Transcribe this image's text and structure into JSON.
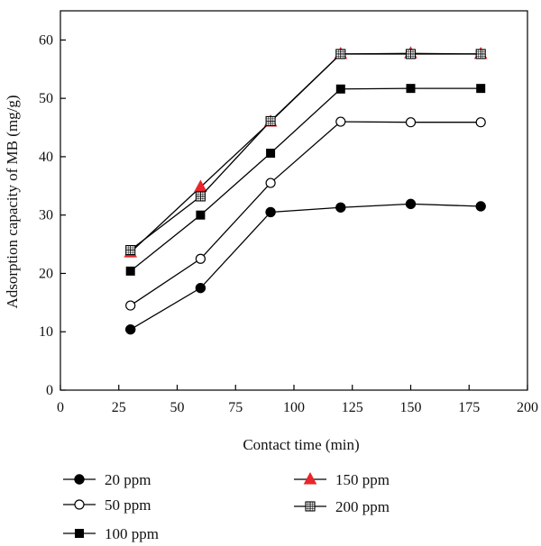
{
  "chart_data": {
    "type": "line",
    "title": "",
    "xlabel": "Contact time (min)",
    "ylabel": "Adsorption capacity of MB (mg/g)",
    "xlim": [
      0,
      200
    ],
    "ylim": [
      0,
      65
    ],
    "x_ticks": [
      0,
      25,
      50,
      75,
      100,
      125,
      150,
      175,
      200
    ],
    "y_ticks": [
      0,
      10,
      20,
      30,
      40,
      50,
      60
    ],
    "x_tick_labels": [
      "0",
      "25",
      "50",
      "75",
      "100",
      "125",
      "150",
      "175",
      "200"
    ],
    "y_tick_labels": [
      "0",
      "10",
      "20",
      "30",
      "40",
      "50",
      "60"
    ],
    "grid": false,
    "legend_position": "bottom",
    "x": [
      30,
      60,
      90,
      120,
      150,
      180
    ],
    "series": [
      {
        "name": "20 ppm",
        "marker": "filled-circle",
        "color": "#000000",
        "values": [
          10.4,
          17.5,
          30.5,
          31.3,
          31.9,
          31.5
        ]
      },
      {
        "name": "50 ppm",
        "marker": "open-circle",
        "color": "#000000",
        "values": [
          14.5,
          22.5,
          35.5,
          46.0,
          45.9,
          45.9
        ]
      },
      {
        "name": "100 ppm",
        "marker": "filled-square",
        "color": "#000000",
        "values": [
          20.4,
          30.0,
          40.6,
          51.6,
          51.7,
          51.7
        ]
      },
      {
        "name": "150 ppm",
        "marker": "red-triangle",
        "color": "#e8262b",
        "values": [
          23.6,
          34.8,
          46.0,
          57.6,
          57.7,
          57.6
        ]
      },
      {
        "name": "200 ppm",
        "marker": "grid-square",
        "color": "#000000",
        "values": [
          24.0,
          33.2,
          46.1,
          57.6,
          57.6,
          57.6
        ]
      }
    ]
  }
}
